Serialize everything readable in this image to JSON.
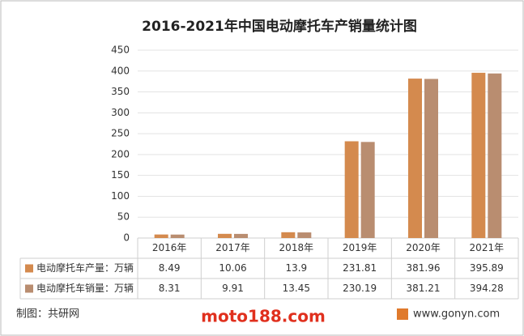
{
  "chart_data": {
    "type": "bar",
    "title": "2016-2021年中国电动摩托车产销量统计图",
    "categories": [
      "2016年",
      "2017年",
      "2018年",
      "2019年",
      "2020年",
      "2021年"
    ],
    "series": [
      {
        "name": "电动摩托车产量：万辆",
        "color": "#d48a4e",
        "values": [
          8.49,
          10.06,
          13.9,
          231.81,
          381.96,
          395.89
        ]
      },
      {
        "name": "电动摩托车销量：万辆",
        "color": "#b98d70",
        "values": [
          8.31,
          9.91,
          13.45,
          230.19,
          381.21,
          394.28
        ]
      }
    ],
    "ylim": [
      0,
      450
    ],
    "yticks": [
      0,
      50,
      100,
      150,
      200,
      250,
      300,
      350,
      400,
      450
    ],
    "grid": true,
    "source": "制图：共研网",
    "center_site": "moto188.com",
    "site": "www.gonyn.com"
  }
}
